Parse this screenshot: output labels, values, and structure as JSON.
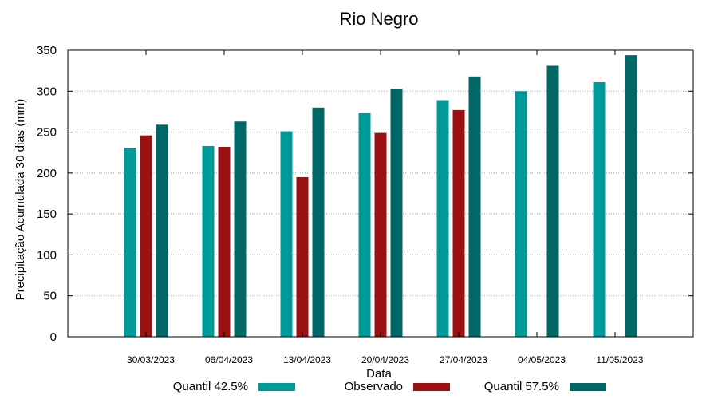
{
  "chart_data": {
    "type": "bar",
    "title": "Rio Negro",
    "xlabel": "Data",
    "ylabel": "Precipitação Acumulada 30 dias (mm)",
    "ylim": [
      0,
      350
    ],
    "yticks": [
      0,
      50,
      100,
      150,
      200,
      250,
      300,
      350
    ],
    "grid": true,
    "legend_position": "bottom",
    "categories": [
      "30/03/2023",
      "06/04/2023",
      "13/04/2023",
      "20/04/2023",
      "27/04/2023",
      "04/05/2023",
      "11/05/2023"
    ],
    "series": [
      {
        "name": "Quantil 42.5%",
        "color": "#009999",
        "values": [
          231,
          233,
          251,
          274,
          289,
          300,
          311
        ]
      },
      {
        "name": "Observado",
        "color": "#991111",
        "values": [
          246,
          232,
          195,
          249,
          277,
          null,
          null
        ]
      },
      {
        "name": "Quantil 57.5%",
        "color": "#006666",
        "values": [
          259,
          263,
          280,
          303,
          318,
          331,
          344
        ]
      }
    ]
  }
}
